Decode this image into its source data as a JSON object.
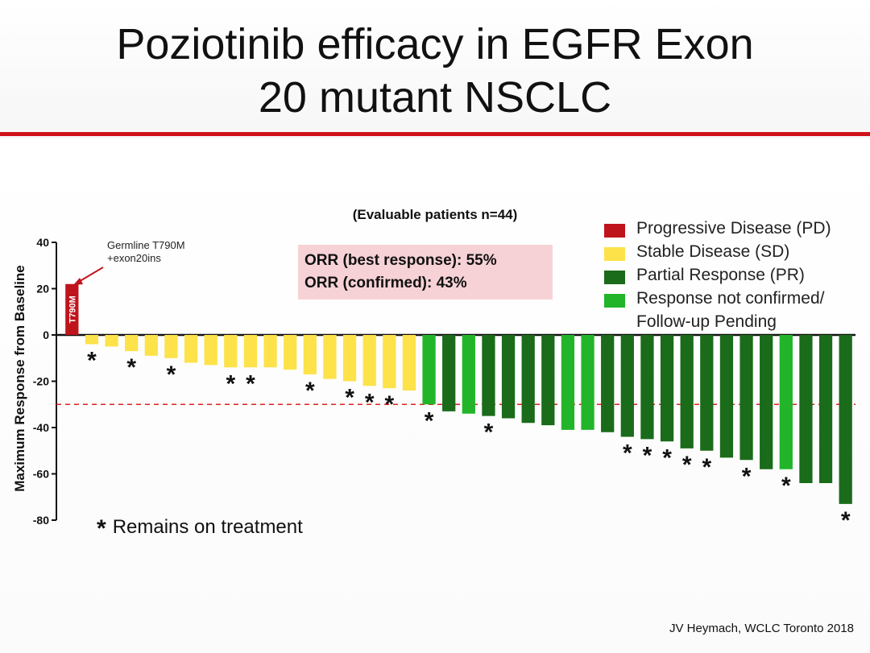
{
  "slide": {
    "title_line1": "Poziotinib efficacy in EGFR Exon",
    "title_line2": "20 mutant NSCLC",
    "subtitle": "(Evaluable patients n=44)",
    "orr_best": "ORR (best response): 55%",
    "orr_confirmed": "ORR (confirmed): 43%",
    "annotation_line1": "Germline T790M",
    "annotation_line2": "+exon20ins",
    "bar_label": "T790M",
    "footnote_symbol": "*",
    "footnote_text": "Remains on treatment",
    "source": "JV Heymach, WCLC Toronto 2018"
  },
  "colors": {
    "accent_rule": "#d0101a",
    "PD": "#c0141c",
    "SD": "#fde24a",
    "PR": "#1a6b1a",
    "NC": "#22b52a",
    "threshold": "#e02020"
  },
  "legend": [
    {
      "key": "PD",
      "label": "Progressive Disease (PD)"
    },
    {
      "key": "SD",
      "label": "Stable Disease (SD)"
    },
    {
      "key": "PR",
      "label": "Partial Response (PR)"
    },
    {
      "key": "NC",
      "label": "Response not confirmed/\nFollow-up Pending"
    }
  ],
  "chart_data": {
    "type": "bar",
    "title": "",
    "xlabel": "",
    "ylabel": "Maximum Response from  Baseline",
    "ylim": [
      -80,
      40
    ],
    "yticks": [
      40,
      20,
      0,
      -20,
      -40,
      -60,
      -80
    ],
    "threshold": -30,
    "values": [
      22,
      -4,
      -5,
      -7,
      -9,
      -10,
      -12,
      -13,
      -14,
      -14,
      -14,
      -15,
      -17,
      -19,
      -20,
      -22,
      -23,
      -24,
      -30,
      -33,
      -34,
      -35,
      -36,
      -38,
      -39,
      -41,
      -41,
      -42,
      -44,
      -45,
      -46,
      -49,
      -50,
      -53,
      -54,
      -58,
      -58,
      -64,
      -64,
      -73
    ],
    "categories_response": [
      "PD",
      "SD",
      "SD",
      "SD",
      "SD",
      "SD",
      "SD",
      "SD",
      "SD",
      "SD",
      "SD",
      "SD",
      "SD",
      "SD",
      "SD",
      "SD",
      "SD",
      "SD",
      "NC",
      "PR",
      "NC",
      "PR",
      "PR",
      "PR",
      "PR",
      "NC",
      "NC",
      "PR",
      "PR",
      "PR",
      "PR",
      "PR",
      "PR",
      "PR",
      "PR",
      "PR",
      "NC",
      "PR",
      "PR",
      "PR"
    ],
    "on_treatment": [
      false,
      true,
      false,
      true,
      false,
      true,
      false,
      false,
      true,
      true,
      false,
      false,
      true,
      false,
      true,
      true,
      true,
      false,
      true,
      false,
      false,
      true,
      false,
      false,
      false,
      false,
      false,
      false,
      true,
      true,
      true,
      true,
      true,
      false,
      true,
      false,
      true,
      false,
      false,
      true
    ],
    "legend_position": "top-right"
  }
}
